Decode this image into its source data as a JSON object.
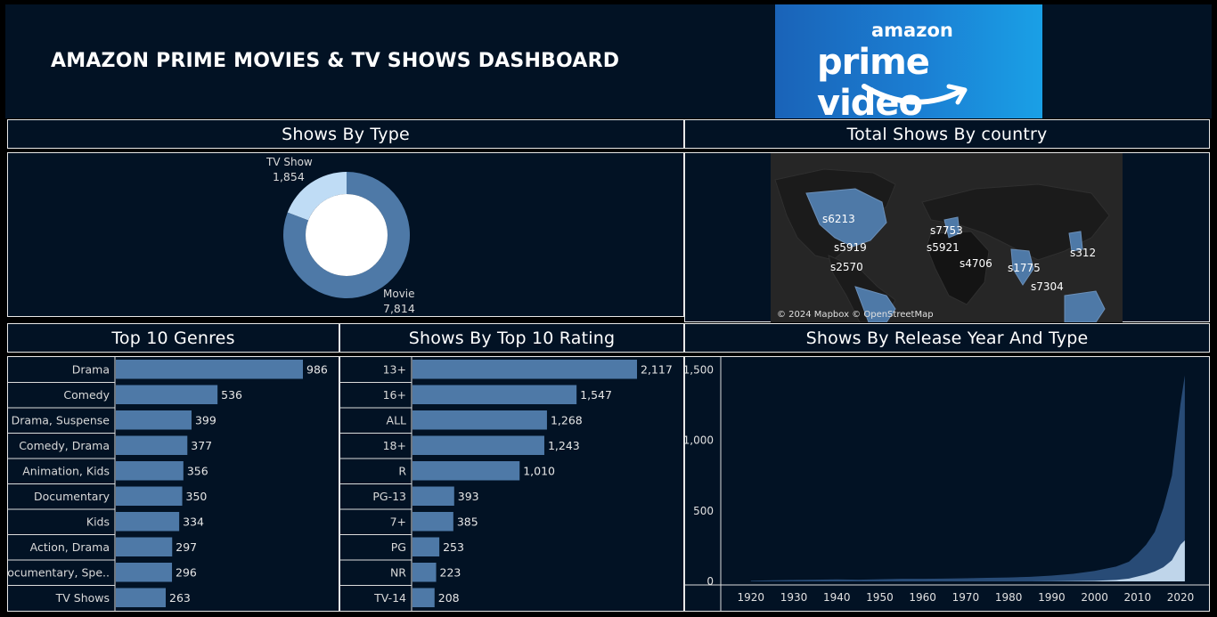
{
  "header": {
    "title": "AMAZON PRIME MOVIES & TV SHOWS DASHBOARD",
    "logo_top": "amazon",
    "logo_main": "prime video"
  },
  "panels": {
    "type": "Shows By Type",
    "country": "Total Shows By country",
    "genres": "Top 10 Genres",
    "rating": "Shows By Top 10 Rating",
    "release": "Shows By Release Year And Type"
  },
  "map": {
    "attribution": "© 2024 Mapbox © OpenStreetMap",
    "labels": [
      "s6213",
      "s5919",
      "s2570",
      "s7753",
      "s5921",
      "s4706",
      "s1775",
      "s7304",
      "s312"
    ]
  },
  "colors": {
    "accent": "#4e79a7",
    "light": "#bfdcf5",
    "panel": "#021224",
    "border": "#e8e8e8"
  },
  "chart_data": [
    {
      "type": "pie",
      "categories": [
        "Movie",
        "TV Show"
      ],
      "values": [
        7814,
        1854
      ],
      "value_labels": [
        "7,814",
        "1,854"
      ],
      "colors": [
        "#4e79a7",
        "#bfdcf5"
      ]
    },
    {
      "type": "bar",
      "orientation": "horizontal",
      "categories": [
        "Drama",
        "Comedy",
        "Drama, Suspense",
        "Comedy, Drama",
        "Animation, Kids",
        "Documentary",
        "Kids",
        "Action, Drama",
        "Documentary, Spe..",
        "TV Shows"
      ],
      "values": [
        986,
        536,
        399,
        377,
        356,
        350,
        334,
        297,
        296,
        263
      ],
      "value_labels": [
        "986",
        "536",
        "399",
        "377",
        "356",
        "350",
        "334",
        "297",
        "296",
        "263"
      ]
    },
    {
      "type": "bar",
      "orientation": "horizontal",
      "categories": [
        "13+",
        "16+",
        "ALL",
        "18+",
        "R",
        "PG-13",
        "7+",
        "PG",
        "NR",
        "TV-14"
      ],
      "values": [
        2117,
        1547,
        1268,
        1243,
        1010,
        393,
        385,
        253,
        223,
        208
      ],
      "value_labels": [
        "2,117",
        "1,547",
        "1,268",
        "1,243",
        "1,010",
        "393",
        "385",
        "253",
        "223",
        "208"
      ]
    },
    {
      "type": "area",
      "stacked": true,
      "x": [
        1920,
        1925,
        1930,
        1935,
        1940,
        1945,
        1950,
        1955,
        1960,
        1965,
        1970,
        1975,
        1980,
        1985,
        1990,
        1995,
        2000,
        2005,
        2008,
        2010,
        2012,
        2014,
        2016,
        2018,
        2020,
        2021
      ],
      "series": [
        {
          "values": [
            0,
            0,
            0,
            0,
            0,
            0,
            0,
            0,
            0,
            0,
            0,
            0,
            0,
            0,
            1,
            2,
            4,
            10,
            20,
            35,
            50,
            70,
            100,
            150,
            260,
            290
          ]
        },
        {
          "values": [
            5,
            8,
            10,
            12,
            14,
            12,
            15,
            18,
            18,
            20,
            22,
            25,
            28,
            32,
            40,
            52,
            70,
            95,
            120,
            160,
            210,
            280,
            420,
            600,
            1000,
            1170
          ]
        }
      ],
      "xticks": [
        1920,
        1930,
        1940,
        1950,
        1960,
        1970,
        1980,
        1990,
        2000,
        2010,
        2020
      ],
      "yticks": [
        0,
        500,
        1000,
        1500
      ],
      "ytick_labels": [
        "0",
        "500",
        "1,000",
        "1,500"
      ],
      "xlim": [
        1913,
        2026
      ],
      "ylim": [
        0,
        1540
      ],
      "colors": [
        "#bfd5ea",
        "#284b76"
      ]
    }
  ]
}
